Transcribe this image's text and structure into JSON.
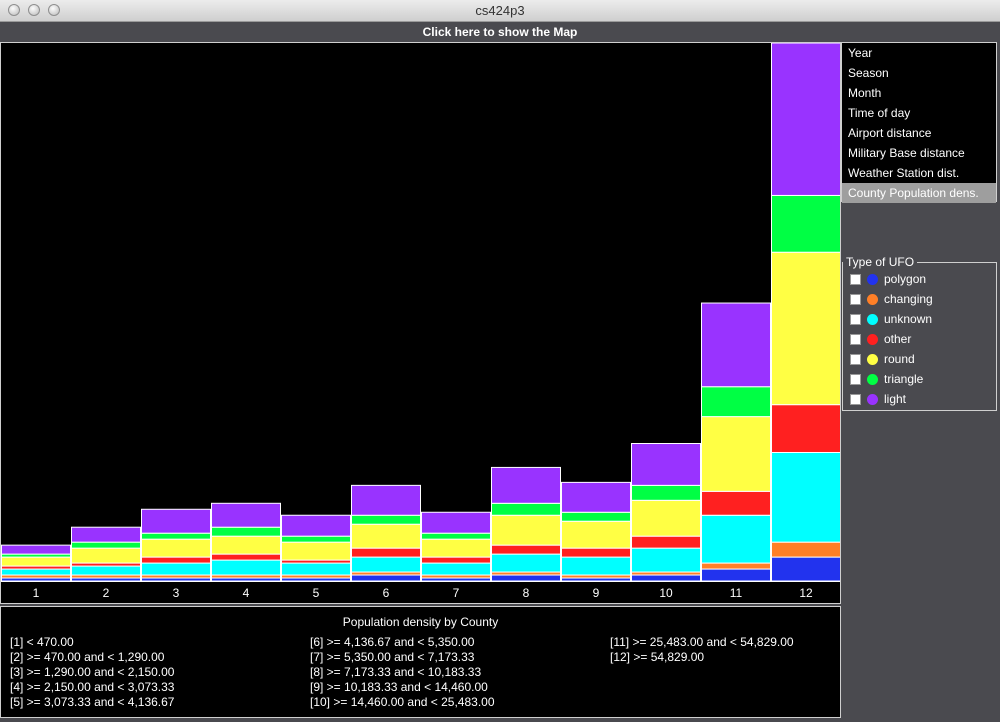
{
  "window": {
    "title": "cs424p3"
  },
  "map_button": "Click here to show the Map",
  "menu": {
    "items": [
      "Year",
      "Season",
      "Month",
      "Time of day",
      "Airport distance",
      "Military Base distance",
      "Weather Station dist.",
      "County Population dens."
    ],
    "selected": 7
  },
  "legend": {
    "title": "Type of UFO",
    "items": [
      {
        "label": "polygon",
        "color": "#2233ee"
      },
      {
        "label": "changing",
        "color": "#ff7f27"
      },
      {
        "label": "unknown",
        "color": "#00ffff"
      },
      {
        "label": "other",
        "color": "#ff2020"
      },
      {
        "label": "round",
        "color": "#ffff44"
      },
      {
        "label": "triangle",
        "color": "#00ff44"
      },
      {
        "label": "light",
        "color": "#9933ff"
      }
    ]
  },
  "bottom": {
    "title": "Population density by County",
    "bins": [
      "[1] < 470.00",
      "[2] >= 470.00 and < 1,290.00",
      "[3] >= 1,290.00 and < 2,150.00",
      "[4] >= 2,150.00 and < 3,073.33",
      "[5] >= 3,073.33 and < 4,136.67",
      "[6] >= 4,136.67 and < 5,350.00",
      "[7] >= 5,350.00 and < 7,173.33",
      "[8] >= 7,173.33 and < 10,183.33",
      "[9] >= 10,183.33 and < 14,460.00",
      "[10] >= 14,460.00 and < 25,483.00",
      "[11] >= 25,483.00 and < 54,829.00",
      "[12] >= 54,829.00"
    ]
  },
  "chart_data": {
    "type": "bar",
    "stacked": true,
    "categories": [
      "1",
      "2",
      "3",
      "4",
      "5",
      "6",
      "7",
      "8",
      "9",
      "10",
      "11",
      "12"
    ],
    "series": [
      {
        "name": "polygon",
        "color": "#2233ee",
        "values": [
          1,
          1,
          1,
          1,
          1,
          2,
          1,
          2,
          1,
          2,
          4,
          8
        ]
      },
      {
        "name": "changing",
        "color": "#ff7f27",
        "values": [
          1,
          1,
          1,
          1,
          1,
          1,
          1,
          1,
          1,
          1,
          2,
          5
        ]
      },
      {
        "name": "unknown",
        "color": "#00ffff",
        "values": [
          2,
          3,
          4,
          5,
          4,
          5,
          4,
          6,
          6,
          8,
          16,
          30
        ]
      },
      {
        "name": "other",
        "color": "#ff2020",
        "values": [
          1,
          1,
          2,
          2,
          1,
          3,
          2,
          3,
          3,
          4,
          8,
          16
        ]
      },
      {
        "name": "round",
        "color": "#ffff44",
        "values": [
          3,
          5,
          6,
          6,
          6,
          8,
          6,
          10,
          9,
          12,
          25,
          51
        ]
      },
      {
        "name": "triangle",
        "color": "#00ff44",
        "values": [
          1,
          2,
          2,
          3,
          2,
          3,
          2,
          4,
          3,
          5,
          10,
          19
        ]
      },
      {
        "name": "light",
        "color": "#9933ff",
        "values": [
          3,
          5,
          8,
          8,
          7,
          10,
          7,
          12,
          10,
          14,
          28,
          51
        ]
      }
    ],
    "ylim": [
      0,
      180
    ]
  }
}
